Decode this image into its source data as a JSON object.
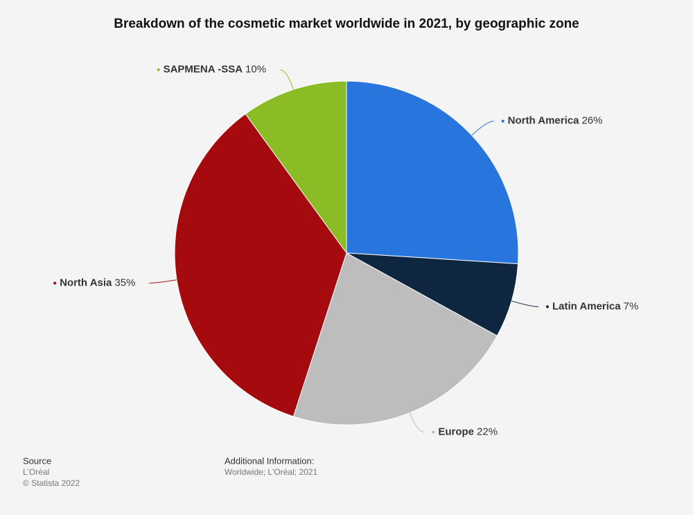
{
  "chart_data": {
    "type": "pie",
    "title": "Breakdown of the cosmetic market worldwide in 2021, by geographic zone",
    "categories": [
      "North America",
      "Latin America",
      "Europe",
      "North Asia",
      "SAPMENA -SSA"
    ],
    "values": [
      26,
      7,
      22,
      35,
      10
    ],
    "value_labels": [
      "26%",
      "7%",
      "22%",
      "35%",
      "10%"
    ],
    "colors": [
      "#2876dd",
      "#0f2640",
      "#bdbdbd",
      "#a50b0e",
      "#8bbc25"
    ]
  },
  "footer": {
    "source_heading": "Source",
    "source": "L'Oréal",
    "copyright": "© Statista 2022",
    "info_heading": "Additional Information:",
    "info": "Worldwide; L'Oréal; 2021"
  }
}
